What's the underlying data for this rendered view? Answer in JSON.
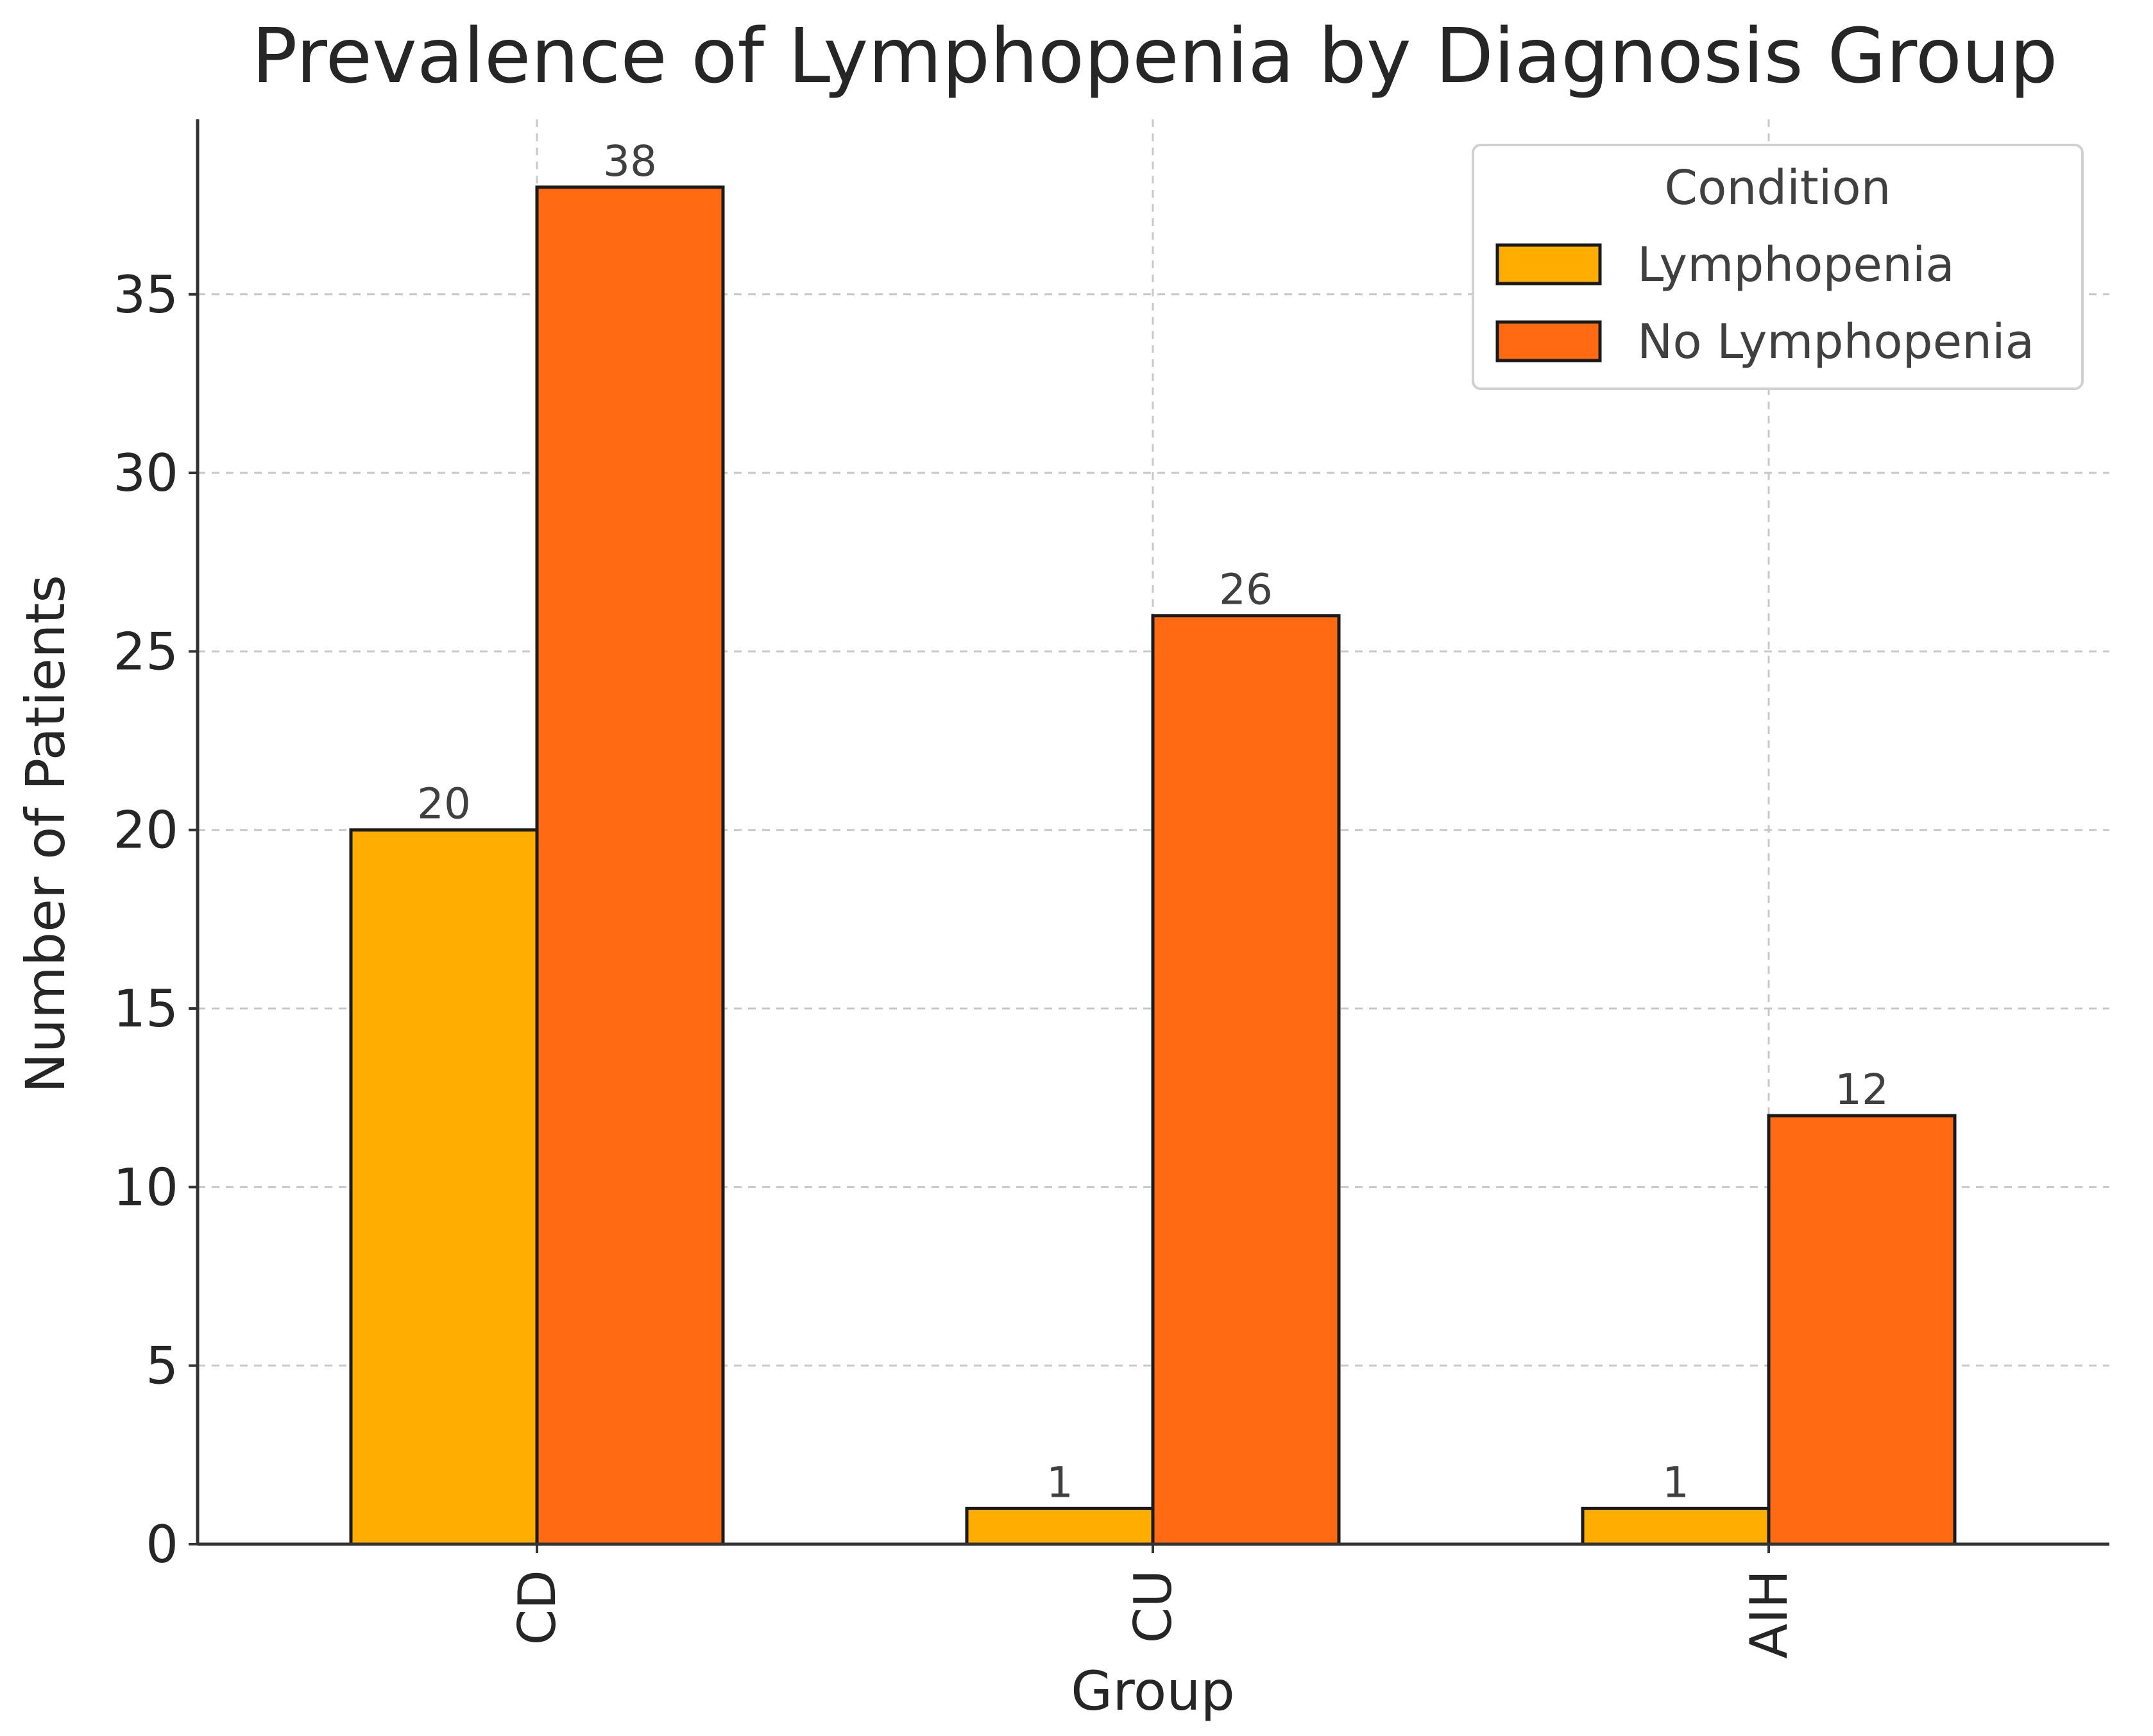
{
  "chart_data": {
    "type": "bar",
    "title": "Prevalence of Lymphopenia by Diagnosis Group",
    "xlabel": "Group",
    "ylabel": "Number of Patients",
    "categories": [
      "CD",
      "CU",
      "AIH"
    ],
    "series": [
      {
        "name": "Lymphopenia",
        "values": [
          20,
          1,
          1
        ],
        "color": "#ffad00"
      },
      {
        "name": "No Lymphopenia",
        "values": [
          38,
          26,
          12
        ],
        "color": "#ff6a13"
      }
    ],
    "ylim": [
      0,
      39.9
    ],
    "yticks": [
      0,
      5,
      10,
      15,
      20,
      25,
      30,
      35
    ],
    "grid": true,
    "legend": {
      "title": "Condition",
      "placement": "top-right"
    }
  }
}
